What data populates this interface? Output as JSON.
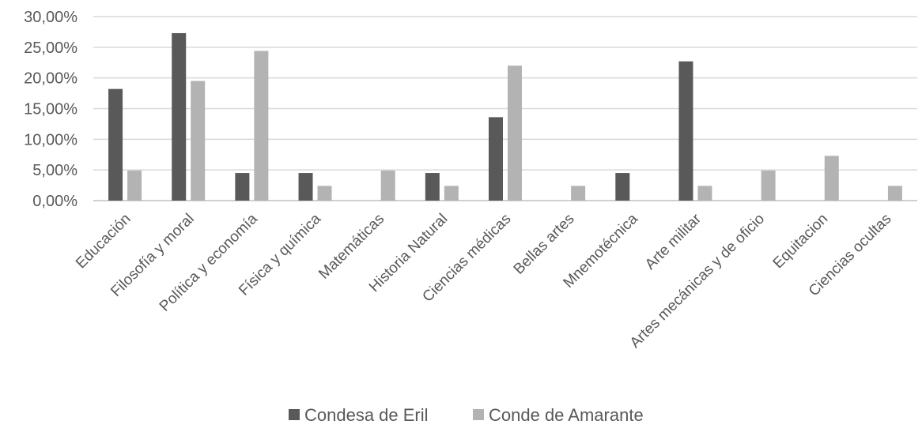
{
  "chart_data": {
    "type": "bar",
    "title": "",
    "xlabel": "",
    "ylabel": "",
    "ylim": [
      0,
      0.3
    ],
    "yticks": [
      0,
      0.05,
      0.1,
      0.15,
      0.2,
      0.25,
      0.3
    ],
    "ytick_labels": [
      "0,00%",
      "5,00%",
      "10,00%",
      "15,00%",
      "20,00%",
      "25,00%",
      "30,00%"
    ],
    "grid": true,
    "legend_position": "bottom",
    "categories": [
      "Educación",
      "Filosofía y moral",
      "Política y economía",
      "Física y química",
      "Matemáticas",
      "Historia Natural",
      "Ciencias médicas",
      "Bellas artes",
      "Mnemotécnica",
      "Arte militar",
      "Artes mecánicas y de oficio",
      "Equitacion",
      "Ciencias ocultas"
    ],
    "series": [
      {
        "name": "Condesa de Eril",
        "color": "#595959",
        "values": [
          0.182,
          0.273,
          0.045,
          0.045,
          0,
          0.045,
          0.136,
          0,
          0.045,
          0.227,
          0,
          0,
          0
        ]
      },
      {
        "name": "Conde de Amarante",
        "color": "#b3b3b3",
        "values": [
          0.049,
          0.195,
          0.244,
          0.024,
          0.049,
          0.024,
          0.22,
          0.024,
          0,
          0.024,
          0.049,
          0.073,
          0.024
        ]
      }
    ]
  }
}
